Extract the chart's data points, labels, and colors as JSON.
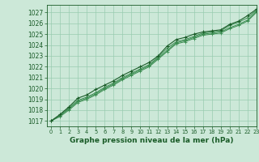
{
  "background_color": "#cce8d8",
  "grid_color": "#99ccb0",
  "line_color_main": "#1a5c28",
  "line_color_light": "#3a8c50",
  "title": "Graphe pression niveau de la mer (hPa)",
  "xlim": [
    -0.5,
    23
  ],
  "ylim": [
    1016.5,
    1027.7
  ],
  "yticks": [
    1017,
    1018,
    1019,
    1020,
    1021,
    1022,
    1023,
    1024,
    1025,
    1026,
    1027
  ],
  "xticks": [
    0,
    1,
    2,
    3,
    4,
    5,
    6,
    7,
    8,
    9,
    10,
    11,
    12,
    13,
    14,
    15,
    16,
    17,
    18,
    19,
    20,
    21,
    22,
    23
  ],
  "series1": [
    1017.0,
    1017.5,
    1018.2,
    1018.9,
    1019.2,
    1019.6,
    1020.1,
    1020.5,
    1021.0,
    1021.4,
    1021.8,
    1022.2,
    1022.9,
    1023.7,
    1024.3,
    1024.5,
    1024.8,
    1025.1,
    1025.2,
    1025.3,
    1025.8,
    1026.1,
    1026.5,
    1027.2
  ],
  "series2": [
    1017.0,
    1017.5,
    1018.1,
    1018.8,
    1019.1,
    1019.5,
    1020.0,
    1020.4,
    1020.9,
    1021.3,
    1021.7,
    1022.1,
    1022.8,
    1023.5,
    1024.2,
    1024.4,
    1024.7,
    1025.0,
    1025.1,
    1025.2,
    1025.6,
    1025.9,
    1026.3,
    1027.1
  ],
  "series3": [
    1017.0,
    1017.4,
    1018.0,
    1018.7,
    1019.0,
    1019.4,
    1019.9,
    1020.3,
    1020.8,
    1021.2,
    1021.6,
    1022.0,
    1022.7,
    1023.4,
    1024.1,
    1024.3,
    1024.6,
    1024.9,
    1025.0,
    1025.1,
    1025.5,
    1025.8,
    1026.2,
    1027.0
  ],
  "series_main": [
    1017.0,
    1017.6,
    1018.3,
    1019.1,
    1019.4,
    1019.9,
    1020.3,
    1020.7,
    1021.2,
    1021.6,
    1022.0,
    1022.4,
    1023.0,
    1023.9,
    1024.5,
    1024.7,
    1025.0,
    1025.2,
    1025.3,
    1025.4,
    1025.9,
    1026.2,
    1026.7,
    1027.3
  ]
}
